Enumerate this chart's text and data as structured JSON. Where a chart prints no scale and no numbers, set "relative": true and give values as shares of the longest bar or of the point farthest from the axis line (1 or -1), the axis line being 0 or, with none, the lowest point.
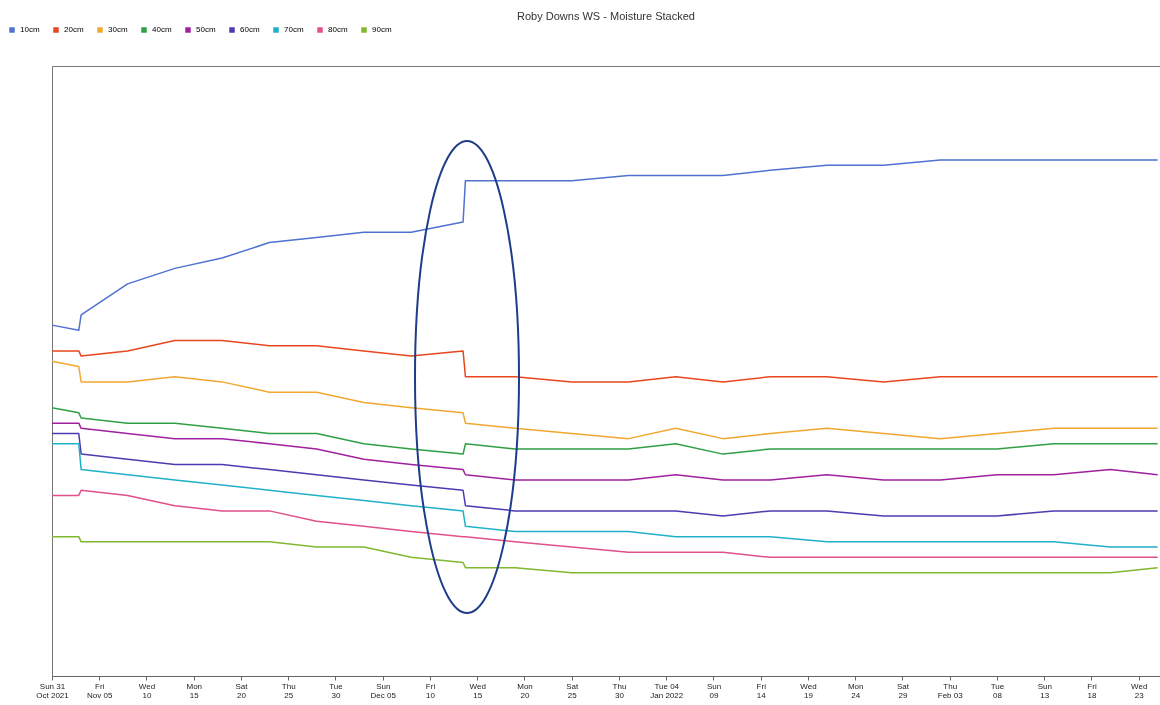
{
  "chart_data": {
    "type": "line",
    "title": "Roby Downs WS - Moisture Stacked",
    "relative": true,
    "legend": "top left",
    "grid": false,
    "marker": "none",
    "line_style": "solid",
    "x": [
      "2021-10-31",
      "2021-11-02T20:00",
      "2021-11-03T02:00",
      "2021-11-08",
      "2021-11-13",
      "2021-11-18",
      "2021-11-23",
      "2021-11-28",
      "2021-12-03",
      "2021-12-08",
      "2021-12-13T12:00",
      "2021-12-13T18:00",
      "2021-12-19",
      "2021-12-25",
      "2021-12-31",
      "2022-01-05",
      "2022-01-10",
      "2022-01-15",
      "2022-01-21",
      "2022-01-27",
      "2022-02-02",
      "2022-02-08",
      "2022-02-14",
      "2022-02-20",
      "2022-02-25"
    ],
    "xlim": [
      "2021-10-31",
      "2022-02-25T06:00"
    ],
    "xticks": [
      {
        "value": "2021-10-31",
        "label": "Sun 31\nOct 2021"
      },
      {
        "value": "2021-11-05",
        "label": "Fri\nNov 05"
      },
      {
        "value": "2021-11-10",
        "label": "Wed\n10"
      },
      {
        "value": "2021-11-15",
        "label": "Mon\n15"
      },
      {
        "value": "2021-11-20",
        "label": "Sat\n20"
      },
      {
        "value": "2021-11-25",
        "label": "Thu\n25"
      },
      {
        "value": "2021-11-30",
        "label": "Tue\n30"
      },
      {
        "value": "2021-12-05",
        "label": "Sun\nDec 05"
      },
      {
        "value": "2021-12-10",
        "label": "Fri\n10"
      },
      {
        "value": "2021-12-15",
        "label": "Wed\n15"
      },
      {
        "value": "2021-12-20",
        "label": "Mon\n20"
      },
      {
        "value": "2021-12-25",
        "label": "Sat\n25"
      },
      {
        "value": "2021-12-30",
        "label": "Thu\n30"
      },
      {
        "value": "2022-01-04",
        "label": "Tue 04\nJan 2022"
      },
      {
        "value": "2022-01-09",
        "label": "Sun\n09"
      },
      {
        "value": "2022-01-14",
        "label": "Fri\n14"
      },
      {
        "value": "2022-01-19",
        "label": "Wed\n19"
      },
      {
        "value": "2022-01-24",
        "label": "Mon\n24"
      },
      {
        "value": "2022-01-29",
        "label": "Sat\n29"
      },
      {
        "value": "2022-02-03",
        "label": "Thu\nFeb 03"
      },
      {
        "value": "2022-02-08",
        "label": "Tue\n08"
      },
      {
        "value": "2022-02-13",
        "label": "Sun\n13"
      },
      {
        "value": "2022-02-18",
        "label": "Fri\n18"
      },
      {
        "value": "2022-02-23",
        "label": "Wed\n23"
      }
    ],
    "series": [
      {
        "name": "10cm",
        "color": "#4f72d0",
        "values": [
          0.68,
          0.67,
          0.7,
          0.76,
          0.79,
          0.81,
          0.84,
          0.85,
          0.86,
          0.86,
          0.88,
          0.96,
          0.96,
          0.96,
          0.97,
          0.97,
          0.97,
          0.98,
          0.99,
          0.99,
          1.0,
          1.0,
          1.0,
          1.0,
          1.0
        ]
      },
      {
        "name": "20cm",
        "color": "#e8461e",
        "values": [
          0.63,
          0.63,
          0.62,
          0.63,
          0.65,
          0.65,
          0.64,
          0.64,
          0.63,
          0.62,
          0.63,
          0.58,
          0.58,
          0.57,
          0.57,
          0.58,
          0.57,
          0.58,
          0.58,
          0.57,
          0.58,
          0.58,
          0.58,
          0.58,
          0.58
        ]
      },
      {
        "name": "30cm",
        "color": "#f0a830",
        "values": [
          0.61,
          0.6,
          0.57,
          0.57,
          0.58,
          0.57,
          0.55,
          0.55,
          0.53,
          0.52,
          0.51,
          0.49,
          0.48,
          0.47,
          0.46,
          0.48,
          0.46,
          0.47,
          0.48,
          0.47,
          0.46,
          0.47,
          0.48,
          0.48,
          0.48
        ]
      },
      {
        "name": "40cm",
        "color": "#2ea043",
        "values": [
          0.52,
          0.51,
          0.5,
          0.49,
          0.49,
          0.48,
          0.47,
          0.47,
          0.45,
          0.44,
          0.43,
          0.45,
          0.44,
          0.44,
          0.44,
          0.45,
          0.43,
          0.44,
          0.44,
          0.44,
          0.44,
          0.44,
          0.45,
          0.45,
          0.45
        ]
      },
      {
        "name": "50cm",
        "color": "#a020a0",
        "values": [
          0.49,
          0.49,
          0.48,
          0.47,
          0.46,
          0.46,
          0.45,
          0.44,
          0.42,
          0.41,
          0.4,
          0.39,
          0.38,
          0.38,
          0.38,
          0.39,
          0.38,
          0.38,
          0.39,
          0.38,
          0.38,
          0.39,
          0.39,
          0.4,
          0.39
        ]
      },
      {
        "name": "60cm",
        "color": "#4a3cb0",
        "values": [
          0.47,
          0.47,
          0.43,
          0.42,
          0.41,
          0.41,
          0.4,
          0.39,
          0.38,
          0.37,
          0.36,
          0.33,
          0.32,
          0.32,
          0.32,
          0.32,
          0.31,
          0.32,
          0.32,
          0.31,
          0.31,
          0.31,
          0.32,
          0.32,
          0.32
        ]
      },
      {
        "name": "70cm",
        "color": "#20b0c8",
        "values": [
          0.45,
          0.45,
          0.4,
          0.39,
          0.38,
          0.37,
          0.36,
          0.35,
          0.34,
          0.33,
          0.32,
          0.29,
          0.28,
          0.28,
          0.28,
          0.27,
          0.27,
          0.27,
          0.26,
          0.26,
          0.26,
          0.26,
          0.26,
          0.25,
          0.25
        ]
      },
      {
        "name": "80cm",
        "color": "#e0508a",
        "values": [
          0.35,
          0.35,
          0.36,
          0.35,
          0.33,
          0.32,
          0.32,
          0.3,
          0.29,
          0.28,
          0.27,
          0.27,
          0.26,
          0.25,
          0.24,
          0.24,
          0.24,
          0.23,
          0.23,
          0.23,
          0.23,
          0.23,
          0.23,
          0.23,
          0.23
        ]
      },
      {
        "name": "90cm",
        "color": "#80b830",
        "values": [
          0.27,
          0.27,
          0.26,
          0.26,
          0.26,
          0.26,
          0.26,
          0.25,
          0.25,
          0.23,
          0.22,
          0.21,
          0.21,
          0.2,
          0.2,
          0.2,
          0.2,
          0.2,
          0.2,
          0.2,
          0.2,
          0.2,
          0.2,
          0.2,
          0.21
        ]
      }
    ]
  }
}
